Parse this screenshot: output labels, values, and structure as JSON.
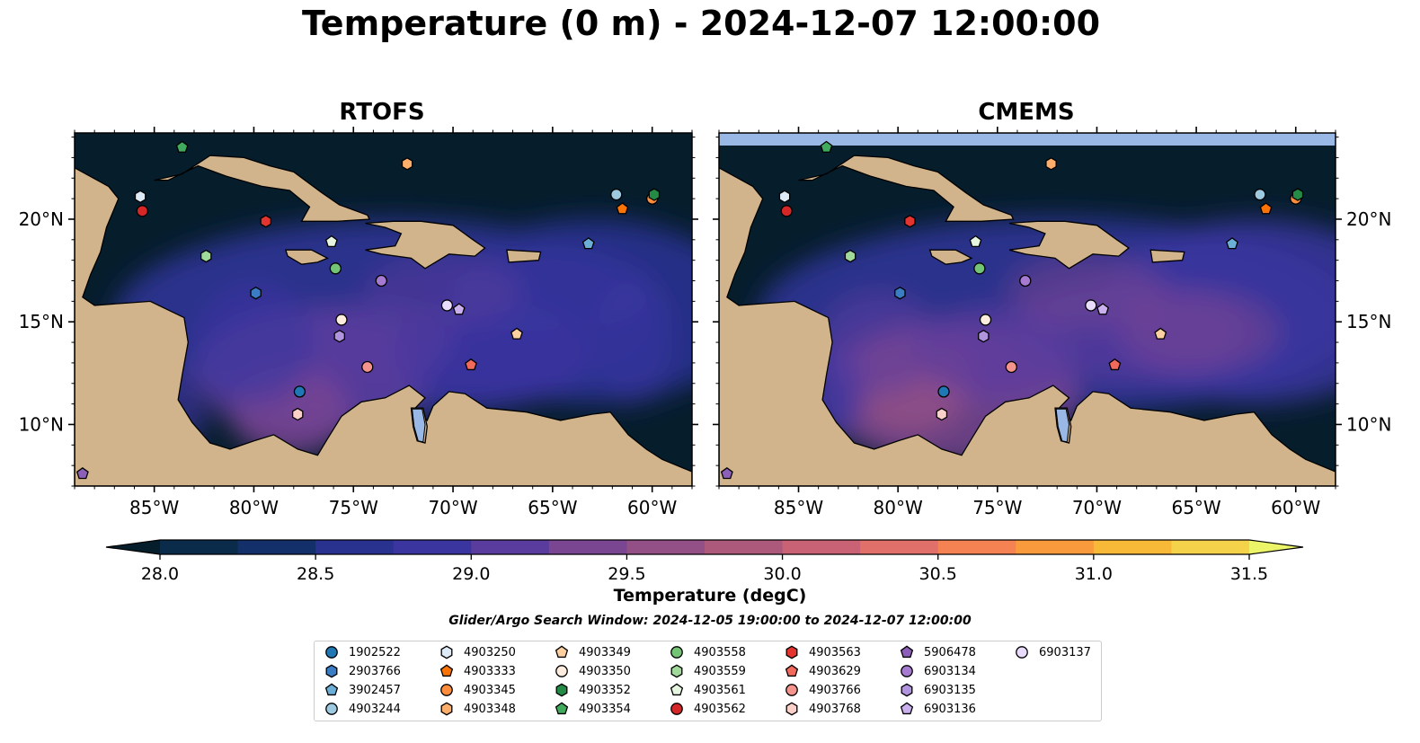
{
  "title": "Temperature (0 m) - 2024-12-07 12:00:00",
  "colors": {
    "land": "#d2b48c",
    "lake": "#9ab8e6",
    "ocean_dark": "#061d2c",
    "border": "#000000"
  },
  "chart_data": [
    {
      "type": "heatmap",
      "title": "RTOFS",
      "x_ticks": [
        "85°W",
        "80°W",
        "75°W",
        "70°W",
        "65°W",
        "60°W"
      ],
      "x_tick_values": [
        -85,
        -80,
        -75,
        -70,
        -65,
        -60
      ],
      "y_ticks": [
        "20°N",
        "15°N",
        "10°N"
      ],
      "y_tick_values": [
        20,
        15,
        10
      ],
      "xlim": [
        -89,
        -58
      ],
      "ylim": [
        7,
        24.2
      ],
      "y_tick_side": "left"
    },
    {
      "type": "heatmap",
      "title": "CMEMS",
      "x_ticks": [
        "85°W",
        "80°W",
        "75°W",
        "70°W",
        "65°W",
        "60°W"
      ],
      "x_tick_values": [
        -85,
        -80,
        -75,
        -70,
        -65,
        -60
      ],
      "y_ticks": [
        "20°N",
        "15°N",
        "10°N"
      ],
      "y_tick_values": [
        20,
        15,
        10
      ],
      "xlim": [
        -89,
        -58
      ],
      "ylim": [
        7,
        24.2
      ],
      "y_tick_side": "right"
    }
  ],
  "colorbar": {
    "label": "Temperature (degC)",
    "min": 28.0,
    "max": 31.5,
    "tick_labels": [
      "28.0",
      "28.5",
      "29.0",
      "29.5",
      "30.0",
      "30.5",
      "31.0",
      "31.5"
    ],
    "tick_values": [
      28.0,
      28.5,
      29.0,
      29.5,
      30.0,
      30.5,
      31.0,
      31.5
    ],
    "colors": [
      "#0b2b4a",
      "#13306b",
      "#2a3290",
      "#3b35a0",
      "#5a3c9e",
      "#7a4692",
      "#935086",
      "#ad597c",
      "#c96274",
      "#e2706a",
      "#f48252",
      "#f99a3c",
      "#f8b838",
      "#f4d34a"
    ],
    "under_color": "#061d2c",
    "over_color": "#ecf567"
  },
  "search_window": "Glider/Argo Search Window: 2024-12-05 19:00:00 to 2024-12-07 12:00:00",
  "floats": [
    {
      "id": "1902522",
      "marker": "circle",
      "color": "#1f77b4",
      "lon": -77.7,
      "lat": 11.6
    },
    {
      "id": "2903766",
      "marker": "hexagon",
      "color": "#3b7dc4",
      "lon": -79.9,
      "lat": 16.4
    },
    {
      "id": "3902457",
      "marker": "pentagon",
      "color": "#6baed6",
      "lon": -63.2,
      "lat": 18.8
    },
    {
      "id": "4903244",
      "marker": "circle",
      "color": "#9ecae1",
      "lon": -61.8,
      "lat": 21.2
    },
    {
      "id": "4903250",
      "marker": "hexagon",
      "color": "#deebf7",
      "lon": -85.7,
      "lat": 21.1
    },
    {
      "id": "4903333",
      "marker": "pentagon",
      "color": "#f97306",
      "lon": -61.5,
      "lat": 20.5
    },
    {
      "id": "4903345",
      "marker": "circle",
      "color": "#fd8d3c",
      "lon": -60.0,
      "lat": 21.0
    },
    {
      "id": "4903348",
      "marker": "hexagon",
      "color": "#fdae6b",
      "lon": -72.3,
      "lat": 22.7
    },
    {
      "id": "4903349",
      "marker": "pentagon",
      "color": "#fdd0a2",
      "lon": -66.8,
      "lat": 14.4
    },
    {
      "id": "4903350",
      "marker": "circle",
      "color": "#feedde",
      "lon": -75.6,
      "lat": 15.1
    },
    {
      "id": "4903352",
      "marker": "hexagon",
      "color": "#238b45",
      "lon": -59.9,
      "lat": 21.2
    },
    {
      "id": "4903354",
      "marker": "pentagon",
      "color": "#41ab5d",
      "lon": -83.6,
      "lat": 23.5
    },
    {
      "id": "4903558",
      "marker": "circle",
      "color": "#74c476",
      "lon": -75.9,
      "lat": 17.6
    },
    {
      "id": "4903559",
      "marker": "hexagon",
      "color": "#a1d99b",
      "lon": -82.4,
      "lat": 18.2
    },
    {
      "id": "4903561",
      "marker": "pentagon",
      "color": "#e5f5e0",
      "lon": -76.1,
      "lat": 18.9
    },
    {
      "id": "4903562",
      "marker": "circle",
      "color": "#d62728",
      "lon": -85.6,
      "lat": 20.4
    },
    {
      "id": "4903563",
      "marker": "hexagon",
      "color": "#e3342f",
      "lon": -79.4,
      "lat": 19.9
    },
    {
      "id": "4903629",
      "marker": "pentagon",
      "color": "#f26a5b",
      "lon": -69.1,
      "lat": 12.9
    },
    {
      "id": "4903766",
      "marker": "circle",
      "color": "#f4948c",
      "lon": -74.3,
      "lat": 12.8
    },
    {
      "id": "4903768",
      "marker": "hexagon",
      "color": "#fbd0c9",
      "lon": -77.8,
      "lat": 10.5
    },
    {
      "id": "5906478",
      "marker": "pentagon",
      "color": "#8c5fb8",
      "lon": -88.6,
      "lat": 7.6
    },
    {
      "id": "6903134",
      "marker": "circle",
      "color": "#a57ad0",
      "lon": -73.6,
      "lat": 17.0
    },
    {
      "id": "6903135",
      "marker": "hexagon",
      "color": "#b194de",
      "lon": -75.7,
      "lat": 14.3
    },
    {
      "id": "6903136",
      "marker": "pentagon",
      "color": "#cbb0ee",
      "lon": -69.7,
      "lat": 15.6
    },
    {
      "id": "6903137",
      "marker": "circle",
      "color": "#e9dbfb",
      "lon": -70.3,
      "lat": 15.8
    }
  ]
}
